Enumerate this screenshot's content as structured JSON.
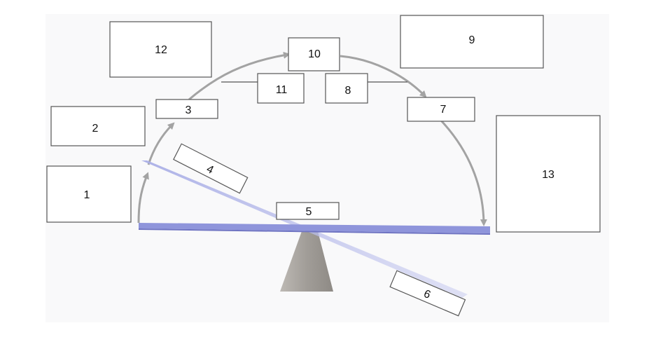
{
  "diagram": {
    "labels": {
      "box1": "1",
      "box2": "2",
      "box3": "3",
      "box4": "4",
      "box5": "5",
      "box6": "6",
      "box7": "7",
      "box8": "8",
      "box9": "9",
      "box10": "10",
      "box11": "11",
      "box12": "12",
      "box13": "13"
    },
    "colors": {
      "plank": "#8f95db",
      "plank_faded": "#c8cbee",
      "fulcrum": "#a8a49f",
      "arrow": "#a3a3a3",
      "box_border": "#555555",
      "background_panel": "#f9f9fa"
    }
  }
}
